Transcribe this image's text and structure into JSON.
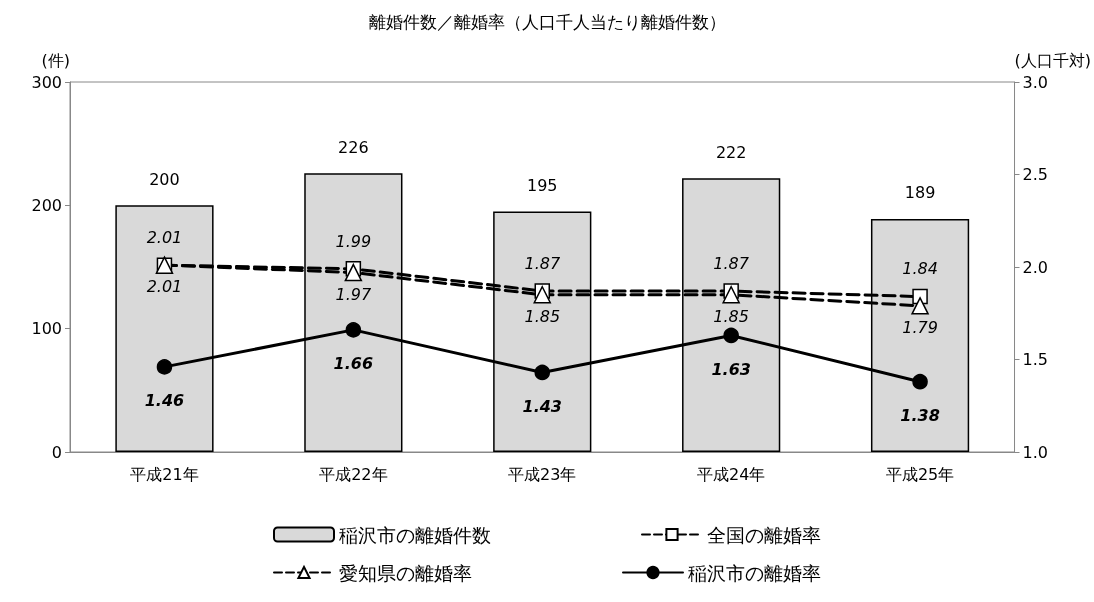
{
  "chart_data": {
    "type": "bar",
    "title": "離婚件数／離婚率（人口千人当たり離婚件数）",
    "ylabel": "(件)",
    "y2label": "(人口千対)",
    "categories": [
      "平成21年",
      "平成22年",
      "平成23年",
      "平成24年",
      "平成25年"
    ],
    "series": [
      {
        "name": "稲沢市の離婚件数",
        "color": "#d9d9d9",
        "values": [
          200,
          226,
          195,
          222,
          189
        ]
      },
      {
        "name": "全国の離婚率",
        "type": "line",
        "axis": "y2",
        "color": "#000000",
        "marker": "square",
        "line_style": "dashed",
        "values": [
          2.01,
          1.99,
          1.87,
          1.87,
          1.84
        ]
      },
      {
        "name": "愛知県の離婚率",
        "type": "line",
        "axis": "y2",
        "color": "#000000",
        "marker": "triangle",
        "line_style": "dashed",
        "values": [
          2.01,
          1.97,
          1.85,
          1.85,
          1.79
        ]
      },
      {
        "name": "稲沢市の離婚率",
        "type": "line",
        "axis": "y2",
        "color": "#000000",
        "marker": "circle",
        "line_style": "solid",
        "values": [
          1.46,
          1.66,
          1.43,
          1.63,
          1.38
        ]
      }
    ],
    "ylim": [
      0,
      300
    ],
    "yticks": [
      0,
      100,
      200,
      300
    ],
    "y2lim": [
      1,
      3
    ],
    "y2ticks": [
      {
        "value": 1,
        "label": "1.0"
      },
      {
        "value": 1.5,
        "label": "1.5"
      },
      {
        "value": 2,
        "label": "2.0"
      },
      {
        "value": 2.5,
        "label": "2.5"
      },
      {
        "value": 3,
        "label": "3.0"
      }
    ],
    "data_labels": true,
    "grid": false,
    "legend": "bottom"
  }
}
